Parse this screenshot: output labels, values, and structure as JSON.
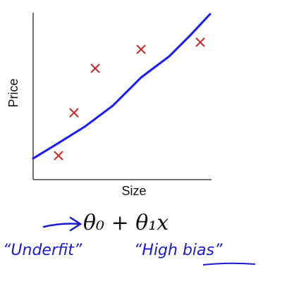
{
  "chart_data": {
    "type": "scatter",
    "xlabel": "Size",
    "ylabel": "Price",
    "xlim": [
      0,
      10
    ],
    "ylim": [
      0,
      10
    ],
    "series": [
      {
        "type": "scatter",
        "color": "#cc2222",
        "x": [
          1.42,
          2.29,
          3.48,
          6.05,
          9.37
        ],
        "values": [
          1.45,
          4.04,
          6.72,
          7.87,
          8.3
        ]
      },
      {
        "type": "line",
        "color": "#1a1aff",
        "x": [
          0,
          1.3,
          2.88,
          4.47,
          6.05,
          7.63,
          8.81,
          9.92
        ],
        "values": [
          1.28,
          2.13,
          3.19,
          4.47,
          6.17,
          7.45,
          8.72,
          10.0
        ]
      }
    ],
    "annotations": [
      "θ₀ + θ₁x",
      "“Underfit”",
      "“High bias”"
    ]
  }
}
